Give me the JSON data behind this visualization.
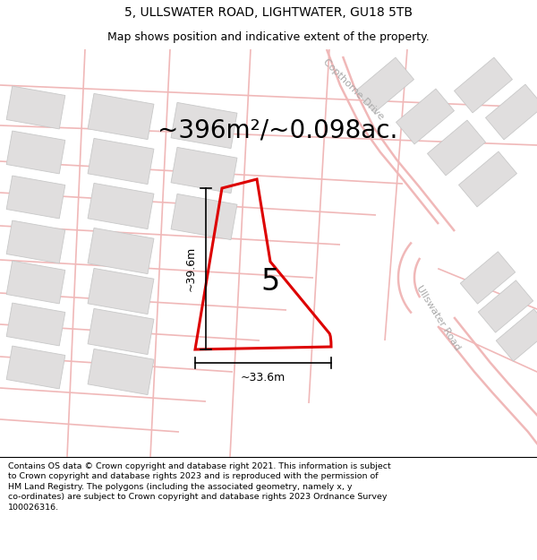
{
  "title_line1": "5, ULLSWATER ROAD, LIGHTWATER, GU18 5TB",
  "title_line2": "Map shows position and indicative extent of the property.",
  "area_text": "~396m²/~0.098ac.",
  "property_number": "5",
  "dim_vertical": "~39.6m",
  "dim_horizontal": "~33.6m",
  "footer_lines": [
    "Contains OS data © Crown copyright and database right 2021. This information is subject",
    "to Crown copyright and database rights 2023 and is reproduced with the permission of",
    "HM Land Registry. The polygons (including the associated geometry, namely x, y",
    "co-ordinates) are subject to Crown copyright and database rights 2023 Ordnance Survey",
    "100026316."
  ],
  "map_bg": "#f7f6f6",
  "road_color": "#f0b8b8",
  "road_lw": 1.2,
  "building_color": "#e0dede",
  "building_edge": "#c8c8c8",
  "property_edge": "#dd0000",
  "road_label_color": "#aaaaaa",
  "road_label1": "Copthorne Drive",
  "road_label2": "Ullswater Road",
  "title_fontsize": 10,
  "subtitle_fontsize": 9,
  "area_fontsize": 20,
  "number_fontsize": 24,
  "dim_fontsize": 9,
  "footer_fontsize": 6.8
}
